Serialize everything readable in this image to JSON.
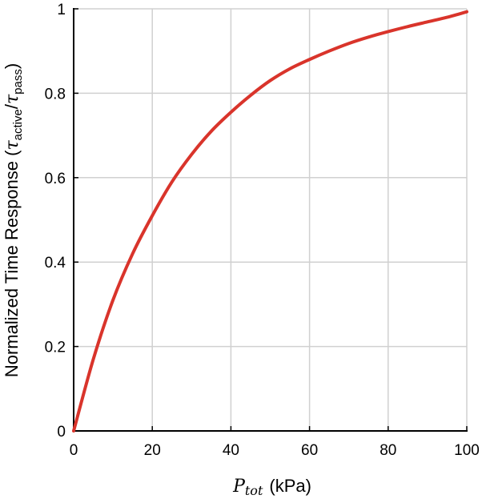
{
  "chart_data": {
    "type": "line",
    "xlabel": {
      "symbol": "P",
      "subscript": "tot",
      "unit": "(kPa)"
    },
    "ylabel": {
      "text": "Normalized Time Response (",
      "numerator": "τ",
      "numerator_sub": "active",
      "slash": "/",
      "denominator": "τ",
      "denominator_sub": "pass",
      "close": ")"
    },
    "xlim": [
      0,
      100
    ],
    "ylim": [
      0,
      1
    ],
    "xticks": [
      0,
      20,
      40,
      60,
      80,
      100
    ],
    "yticks": [
      0,
      0.2,
      0.4,
      0.6,
      0.8,
      1
    ],
    "xtick_labels": [
      "0",
      "20",
      "40",
      "60",
      "80",
      "100"
    ],
    "ytick_labels": [
      "0",
      "0.2",
      "0.4",
      "0.6",
      "0.8",
      "1"
    ],
    "grid": true,
    "series": [
      {
        "color": "#d9342b",
        "x": [
          0,
          5,
          10,
          15,
          20,
          25,
          30,
          35,
          40,
          45,
          50,
          55,
          60,
          65,
          70,
          75,
          80,
          85,
          90,
          95,
          100
        ],
        "y": [
          0,
          0.17,
          0.31,
          0.42,
          0.51,
          0.59,
          0.655,
          0.71,
          0.755,
          0.795,
          0.83,
          0.858,
          0.88,
          0.9,
          0.918,
          0.933,
          0.946,
          0.958,
          0.969,
          0.98,
          0.993
        ]
      }
    ]
  }
}
